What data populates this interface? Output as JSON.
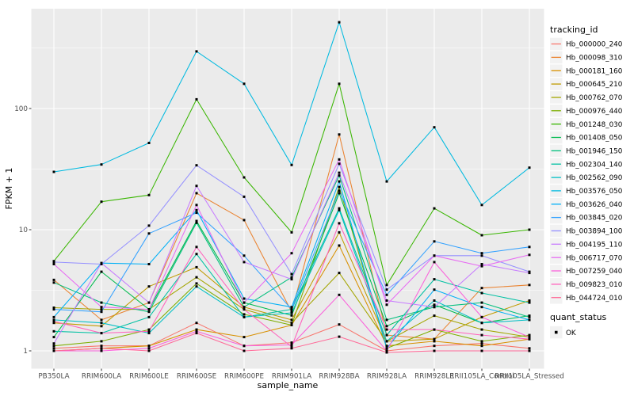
{
  "chart_data": {
    "type": "line",
    "title": "",
    "xlabel": "sample_name",
    "ylabel": "FPKM + 1",
    "y_scale": "log10",
    "y_tick_labels": [
      "1",
      "10",
      "100"
    ],
    "y_tick_values": [
      1,
      10,
      100
    ],
    "y_minor_values": [
      3.162,
      31.62,
      316.2
    ],
    "x_categories": [
      "PB350LA",
      "RRIM600LA",
      "RRIM600LE",
      "RRIM600SE",
      "RRIM600PE",
      "RRIM901LA",
      "RRIM928BA",
      "RRIM928LA",
      "RRIM928LE",
      "RRII105LA_Control",
      "RRII105LA_Stressed"
    ],
    "marker": {
      "shape": "square",
      "color": "#000000",
      "size": 3
    },
    "colors": {
      "panel_bg": "#EBEBEB",
      "grid": "#FFFFFF",
      "axis_text": "#4D4D4D",
      "tick_mark": "#333333",
      "key_bg": "#F2F2F2",
      "text": "#000000"
    },
    "legend": {
      "tracking_title": "tracking_id",
      "quant_title": "quant_status",
      "quant_items": [
        {
          "label": "OK",
          "color": "#000000"
        }
      ]
    },
    "series": [
      {
        "name": "Hb_000000_240",
        "color": "#F8766D",
        "values": [
          1.05,
          1.1,
          1.1,
          1.7,
          1.1,
          1.17,
          1.65,
          1.0,
          1.1,
          1.15,
          1.05
        ]
      },
      {
        "name": "Hb_000098_310",
        "color": "#EA8331",
        "values": [
          3.85,
          1.8,
          2.5,
          20,
          12,
          2.1,
          61,
          1.35,
          1.25,
          3.3,
          3.5
        ]
      },
      {
        "name": "Hb_000181_160",
        "color": "#D89000",
        "values": [
          1.0,
          1.05,
          1.1,
          1.5,
          1.3,
          1.63,
          7.4,
          1.1,
          1.2,
          1.1,
          1.25
        ]
      },
      {
        "name": "Hb_000645_210",
        "color": "#C09B00",
        "values": [
          1.7,
          1.6,
          3.4,
          4.9,
          2.3,
          1.8,
          9.5,
          1.2,
          1.25,
          1.9,
          2.6
        ]
      },
      {
        "name": "Hb_000762_070",
        "color": "#A3A500",
        "values": [
          2.27,
          2.2,
          2.2,
          4.05,
          2.2,
          1.7,
          4.4,
          1.2,
          1.95,
          1.5,
          1.3
        ]
      },
      {
        "name": "Hb_000976_440",
        "color": "#7CAE00",
        "values": [
          1.1,
          1.2,
          1.5,
          3.6,
          2.0,
          1.63,
          22.5,
          1.05,
          1.5,
          1.2,
          1.35
        ]
      },
      {
        "name": "Hb_001248_030",
        "color": "#39B600",
        "values": [
          5.5,
          17,
          19.3,
          119,
          27,
          9.5,
          160,
          3.5,
          15,
          9.0,
          10.0
        ]
      },
      {
        "name": "Hb_001408_050",
        "color": "#00BB4E",
        "values": [
          1.3,
          4.5,
          2.2,
          11.8,
          2.5,
          1.96,
          20,
          1.6,
          2.4,
          1.7,
          1.95
        ]
      },
      {
        "name": "Hb_001946_150",
        "color": "#00BF7D",
        "values": [
          3.66,
          2.5,
          2.1,
          11.4,
          2.3,
          4.05,
          28,
          1.8,
          2.3,
          2.5,
          1.9
        ]
      },
      {
        "name": "Hb_002304_140",
        "color": "#00C1A3",
        "values": [
          1.45,
          1.4,
          1.9,
          6.3,
          1.9,
          2.2,
          15,
          1.35,
          3.9,
          3.0,
          2.5
        ]
      },
      {
        "name": "Hb_002562_090",
        "color": "#00BFC4",
        "values": [
          1.8,
          1.7,
          1.4,
          3.4,
          1.9,
          2.06,
          14.5,
          1.2,
          2.6,
          1.7,
          1.8
        ]
      },
      {
        "name": "Hb_003576_050",
        "color": "#00BAE0",
        "values": [
          30,
          34.5,
          52,
          296,
          160,
          34.2,
          515,
          25,
          70,
          16,
          32.5
        ]
      },
      {
        "name": "Hb_003626_040",
        "color": "#00B0F6",
        "values": [
          1.9,
          5.3,
          5.2,
          14.5,
          2.7,
          2.3,
          25,
          1.05,
          3.2,
          2.3,
          1.8
        ]
      },
      {
        "name": "Hb_003845_020",
        "color": "#35A2FF",
        "values": [
          2.2,
          2.1,
          9.3,
          13.8,
          6.1,
          2.2,
          21,
          2.9,
          8.0,
          6.4,
          7.2
        ]
      },
      {
        "name": "Hb_003894_100",
        "color": "#9590FF",
        "values": [
          5.4,
          5.2,
          10.8,
          34,
          18.7,
          4.3,
          35,
          3.2,
          6.1,
          6.1,
          4.5
        ]
      },
      {
        "name": "Hb_004195_110",
        "color": "#C77CFF",
        "values": [
          1.15,
          5.3,
          2.5,
          23,
          5.4,
          3.9,
          29.5,
          2.6,
          2.3,
          5.2,
          4.4
        ]
      },
      {
        "name": "Hb_006717_070",
        "color": "#E76BF3",
        "values": [
          5.2,
          2.3,
          2.2,
          16,
          2.5,
          6.4,
          38,
          2.4,
          6.1,
          5.0,
          6.2
        ]
      },
      {
        "name": "Hb_007259_040",
        "color": "#FA62DB",
        "values": [
          1.0,
          1.0,
          1.05,
          1.45,
          1.1,
          1.12,
          2.9,
          1.0,
          5.4,
          1.9,
          1.3
        ]
      },
      {
        "name": "Hb_009823_010",
        "color": "#FF62BC",
        "values": [
          1.75,
          1.4,
          1.45,
          7.2,
          2.2,
          1.08,
          11.3,
          1.5,
          1.5,
          1.35,
          1.25
        ]
      },
      {
        "name": "Hb_044724_010",
        "color": "#FF6A98",
        "values": [
          1.0,
          1.05,
          1.0,
          1.4,
          1.0,
          1.05,
          1.31,
          0.97,
          1.0,
          1.0,
          1.0
        ]
      }
    ]
  }
}
